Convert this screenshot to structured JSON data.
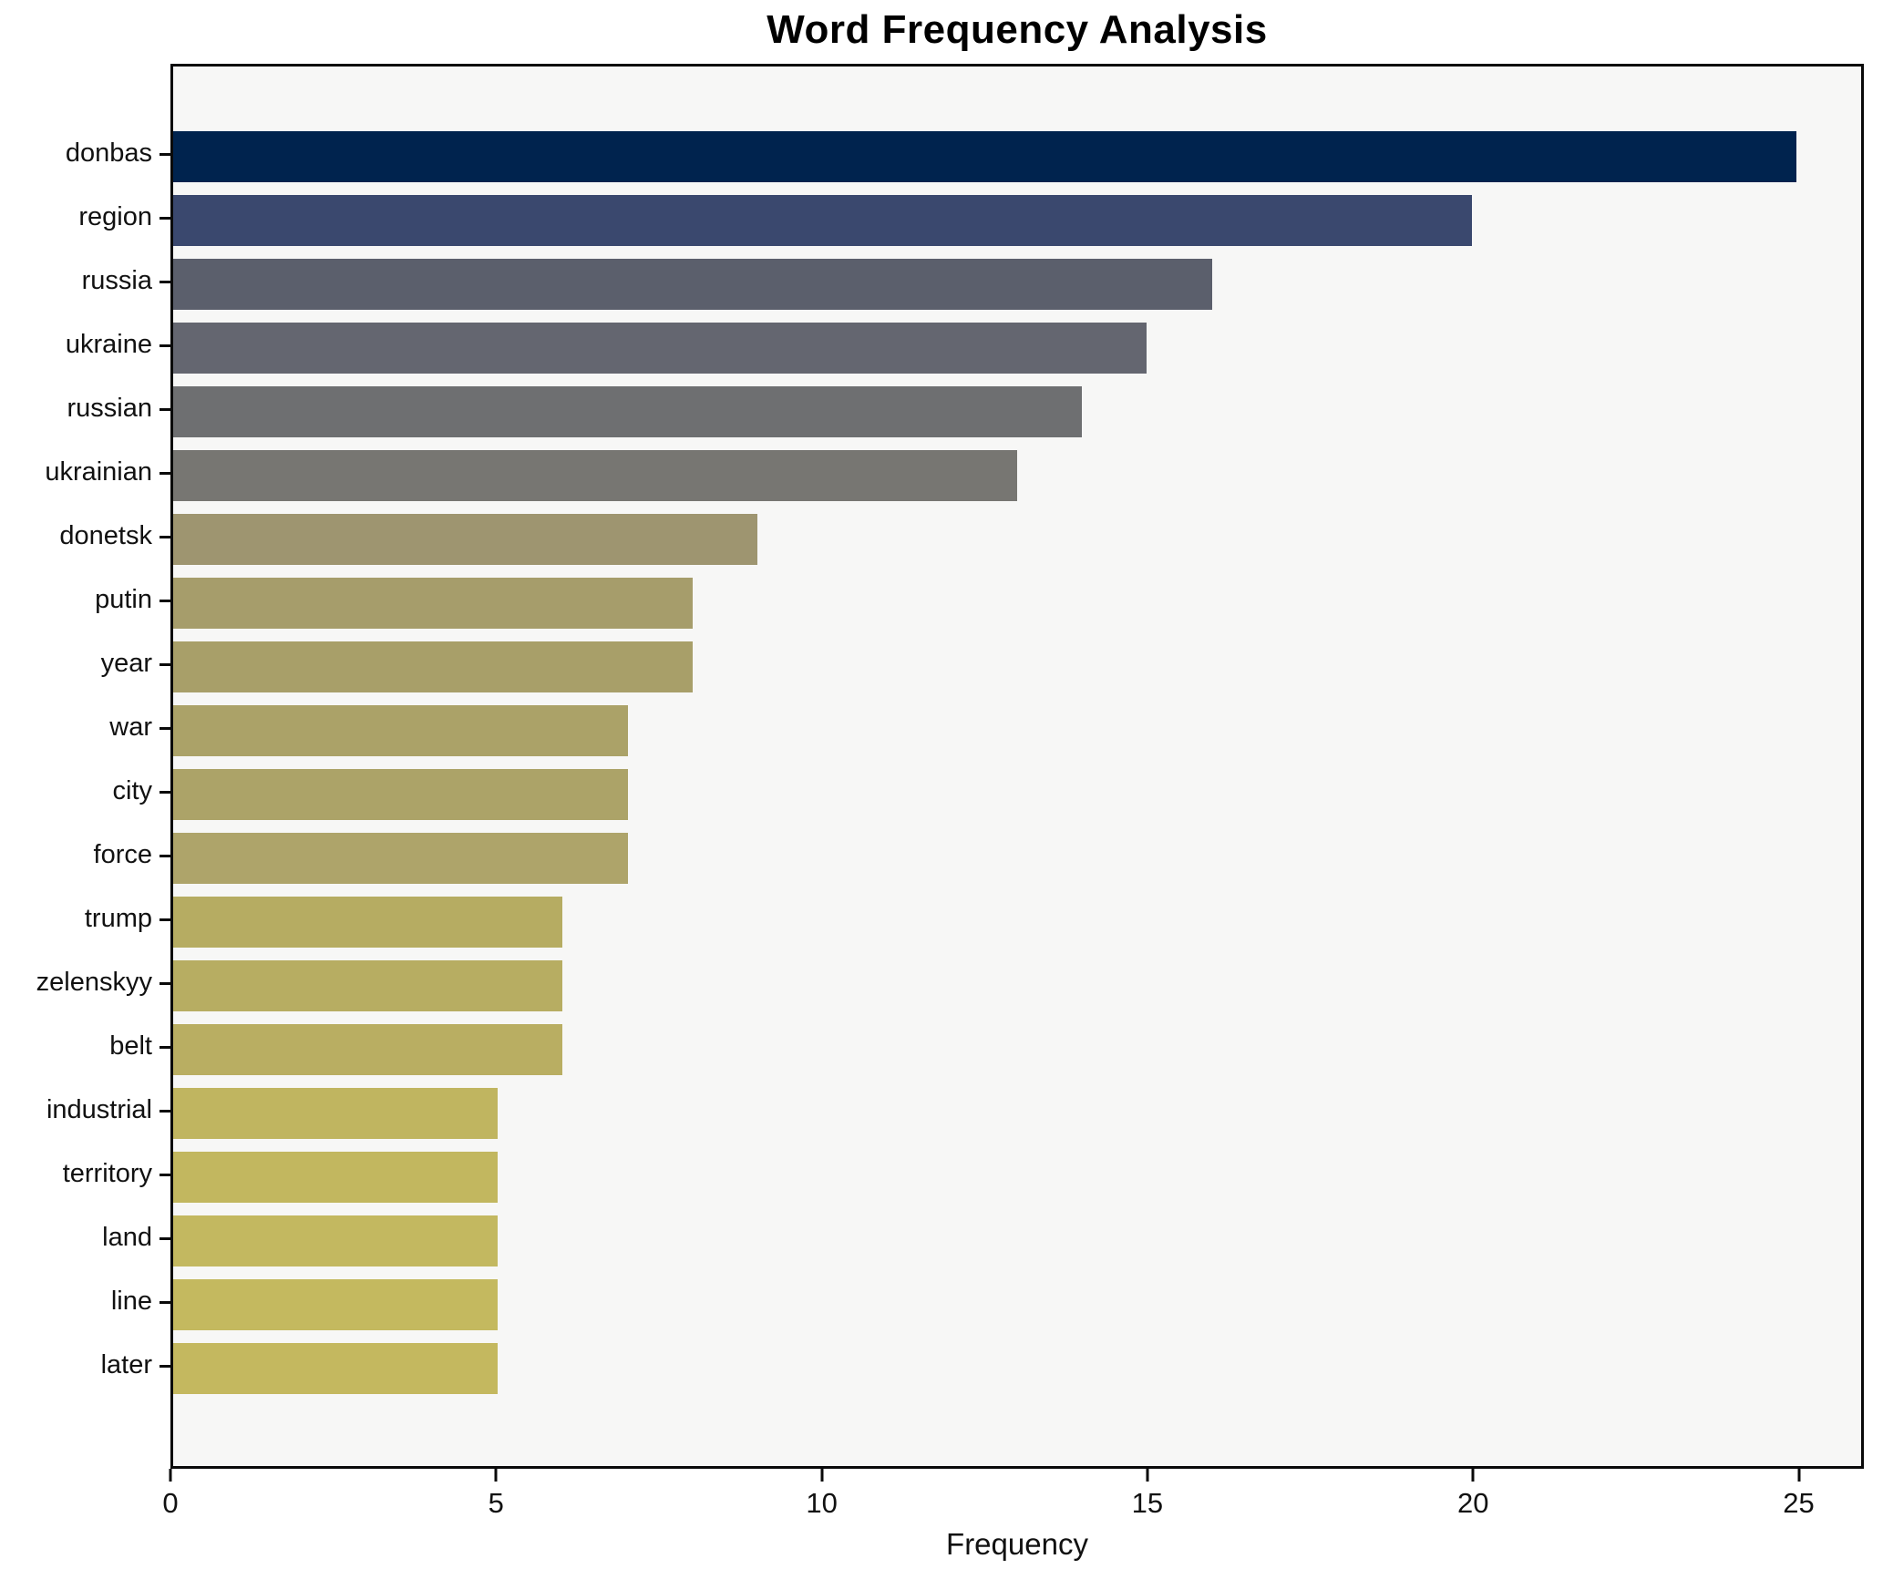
{
  "title": "Word Frequency Analysis",
  "xlabel": "Frequency",
  "chart_data": {
    "type": "bar",
    "orientation": "horizontal",
    "title": "Word Frequency Analysis",
    "xlabel": "Frequency",
    "ylabel": "",
    "xlim": [
      0,
      26
    ],
    "xticks": [
      0,
      5,
      10,
      15,
      20,
      25
    ],
    "grid": false,
    "legend": "none",
    "plot_background": "#f7f7f6",
    "figure_background": "#ffffff",
    "spine_color": "#0a0a0a",
    "categories": [
      "donbas",
      "region",
      "russia",
      "ukraine",
      "russian",
      "ukrainian",
      "donetsk",
      "putin",
      "year",
      "war",
      "city",
      "force",
      "trump",
      "zelenskyy",
      "belt",
      "industrial",
      "territory",
      "land",
      "line",
      "later"
    ],
    "values": [
      25,
      20,
      16,
      15,
      14,
      13,
      9,
      8,
      8,
      7,
      7,
      7,
      6,
      6,
      6,
      5,
      5,
      5,
      5,
      5
    ],
    "bar_colors": [
      "#00234e",
      "#3a486e",
      "#5b5f6c",
      "#646670",
      "#6e6f71",
      "#777672",
      "#9e9570",
      "#a69d6b",
      "#a89f69",
      "#aba268",
      "#aca368",
      "#aea46a",
      "#b6ac62",
      "#b7ad62",
      "#b9ae62",
      "#c0b560",
      "#c2b75f",
      "#c3b860",
      "#c4b95f",
      "#c4b85f"
    ]
  }
}
